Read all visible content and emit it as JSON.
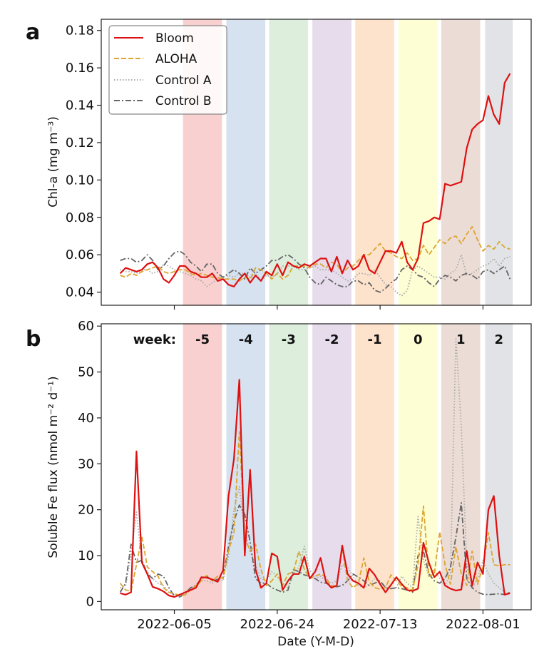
{
  "chart_data": [
    {
      "panel": "a",
      "type": "line",
      "title": "",
      "xlabel": "",
      "ylabel": "Chl-a (mg m⁻³)",
      "ylim": [
        0.033,
        0.186
      ],
      "yticks": [
        0.04,
        0.06,
        0.08,
        0.1,
        0.12,
        0.14,
        0.16,
        0.18
      ],
      "ytick_labels": [
        "0.04",
        "0.06",
        "0.08",
        "0.10",
        "0.12",
        "0.14",
        "0.16",
        "0.18"
      ],
      "x_start_date": "2022-05-26",
      "x_unit": "days since 2022-06-05",
      "x": [
        -10,
        -9,
        -8,
        -7,
        -6,
        -5,
        -4,
        -3,
        -2,
        -1,
        0,
        1,
        2,
        3,
        4,
        5,
        6,
        7,
        8,
        9,
        10,
        11,
        12,
        13,
        14,
        15,
        16,
        17,
        18,
        19,
        20,
        21,
        22,
        23,
        24,
        25,
        26,
        27,
        28,
        29,
        30,
        31,
        32,
        33,
        34,
        35,
        36,
        37,
        38,
        39,
        40,
        41,
        42,
        43,
        44,
        45,
        46,
        47,
        48,
        49,
        50,
        51,
        52,
        53,
        54,
        55,
        56,
        57,
        58,
        59,
        60,
        61,
        62
      ],
      "legend": "top-left",
      "series": [
        {
          "name": "Bloom",
          "color": "#dd1111",
          "style": "solid",
          "values": [
            0.05,
            0.053,
            0.052,
            0.051,
            0.052,
            0.055,
            0.056,
            0.053,
            0.047,
            0.045,
            0.049,
            0.054,
            0.054,
            0.051,
            0.05,
            0.048,
            0.048,
            0.05,
            0.046,
            0.047,
            0.044,
            0.043,
            0.047,
            0.05,
            0.045,
            0.049,
            0.046,
            0.051,
            0.049,
            0.055,
            0.049,
            0.056,
            0.054,
            0.053,
            0.055,
            0.054,
            0.056,
            0.058,
            0.058,
            0.051,
            0.059,
            0.05,
            0.057,
            0.052,
            0.054,
            0.06,
            0.052,
            0.05,
            0.056,
            0.062,
            0.062,
            0.061,
            0.067,
            0.056,
            0.052,
            0.058,
            0.077,
            0.078,
            0.08,
            0.079,
            0.098,
            0.097,
            0.098,
            0.099,
            0.117,
            0.127,
            0.13,
            0.132,
            0.145,
            0.135,
            0.13,
            0.152,
            0.157
          ]
        },
        {
          "name": "ALOHA",
          "color": "#dba531",
          "style": "dashed",
          "values": [
            0.049,
            0.048,
            0.05,
            0.049,
            0.051,
            0.052,
            0.053,
            0.054,
            0.051,
            0.05,
            0.051,
            0.052,
            0.052,
            0.05,
            0.049,
            0.05,
            0.049,
            0.048,
            0.048,
            0.047,
            0.047,
            0.047,
            0.046,
            0.048,
            0.047,
            0.053,
            0.052,
            0.05,
            0.047,
            0.05,
            0.047,
            0.049,
            0.054,
            0.054,
            0.054,
            0.053,
            0.055,
            0.055,
            0.053,
            0.056,
            0.055,
            0.05,
            0.053,
            0.054,
            0.057,
            0.06,
            0.06,
            0.063,
            0.066,
            0.062,
            0.061,
            0.059,
            0.058,
            0.061,
            0.057,
            0.058,
            0.065,
            0.06,
            0.064,
            0.068,
            0.066,
            0.069,
            0.07,
            0.066,
            0.071,
            0.075,
            0.068,
            0.062,
            0.065,
            0.063,
            0.067,
            0.064,
            0.063
          ]
        },
        {
          "name": "Control A",
          "color": "#aaaaaa",
          "style": "dotted",
          "values": [
            0.052,
            0.051,
            0.051,
            0.05,
            0.052,
            0.052,
            0.05,
            0.051,
            0.055,
            0.054,
            0.052,
            0.051,
            0.05,
            0.049,
            0.047,
            0.046,
            0.043,
            0.045,
            0.047,
            0.048,
            0.049,
            0.048,
            0.05,
            0.05,
            0.048,
            0.05,
            0.046,
            0.049,
            0.048,
            0.05,
            0.054,
            0.054,
            0.054,
            0.052,
            0.052,
            0.053,
            0.054,
            0.052,
            0.052,
            0.052,
            0.05,
            0.048,
            0.046,
            0.047,
            0.05,
            0.05,
            0.049,
            0.052,
            0.048,
            0.044,
            0.043,
            0.04,
            0.038,
            0.041,
            0.052,
            0.054,
            0.052,
            0.05,
            0.048,
            0.048,
            0.047,
            0.05,
            0.052,
            0.06,
            0.049,
            0.05,
            0.052,
            0.054,
            0.055,
            0.058,
            0.054,
            0.058,
            0.059
          ]
        },
        {
          "name": "Control B",
          "color": "#666666",
          "style": "dashdot",
          "values": [
            0.057,
            0.058,
            0.058,
            0.056,
            0.057,
            0.06,
            0.057,
            0.052,
            0.054,
            0.058,
            0.061,
            0.062,
            0.06,
            0.056,
            0.054,
            0.051,
            0.055,
            0.055,
            0.05,
            0.048,
            0.05,
            0.052,
            0.05,
            0.047,
            0.053,
            0.05,
            0.052,
            0.054,
            0.057,
            0.057,
            0.059,
            0.06,
            0.058,
            0.055,
            0.053,
            0.048,
            0.045,
            0.044,
            0.048,
            0.046,
            0.044,
            0.043,
            0.043,
            0.046,
            0.046,
            0.044,
            0.045,
            0.041,
            0.04,
            0.042,
            0.045,
            0.047,
            0.052,
            0.054,
            0.052,
            0.049,
            0.048,
            0.045,
            0.043,
            0.047,
            0.049,
            0.048,
            0.046,
            0.049,
            0.05,
            0.049,
            0.047,
            0.051,
            0.052,
            0.05,
            0.052,
            0.054,
            0.047
          ]
        }
      ]
    },
    {
      "panel": "b",
      "type": "line",
      "title": "",
      "xlabel": "Date (Y-M-D)",
      "ylabel": "Soluble Fe flux (nmol m⁻² d⁻¹)",
      "ylim": [
        -1.8,
        60.5
      ],
      "yticks": [
        0,
        10,
        20,
        30,
        40,
        50,
        60
      ],
      "ytick_labels": [
        "0",
        "10",
        "20",
        "30",
        "40",
        "50",
        "60"
      ],
      "xticks": [
        0,
        19,
        38,
        57
      ],
      "xtick_labels": [
        "2022-06-05",
        "2022-06-24",
        "2022-07-13",
        "2022-08-01"
      ],
      "x": [
        -10,
        -9,
        -8,
        -7,
        -6,
        -5,
        -4,
        -3,
        -2,
        -1,
        0,
        1,
        2,
        3,
        4,
        5,
        6,
        7,
        8,
        9,
        10,
        11,
        12,
        13,
        14,
        15,
        16,
        17,
        18,
        19,
        20,
        21,
        22,
        23,
        24,
        25,
        26,
        27,
        28,
        29,
        30,
        31,
        32,
        33,
        34,
        35,
        36,
        37,
        38,
        39,
        40,
        41,
        42,
        43,
        44,
        45,
        46,
        47,
        48,
        49,
        50,
        51,
        52,
        53,
        54,
        55,
        56,
        57,
        58,
        59,
        60,
        61,
        62
      ],
      "week_label_prefix": "week:",
      "series": [
        {
          "name": "Bloom",
          "color": "#dd1111",
          "style": "solid",
          "values": [
            1.8,
            1.5,
            2.0,
            32.7,
            8.5,
            6.0,
            3.2,
            2.8,
            2.2,
            1.3,
            1.0,
            1.5,
            2.0,
            2.5,
            3.0,
            5.3,
            5.2,
            4.8,
            4.3,
            6.8,
            23.0,
            31.0,
            48.3,
            10.0,
            28.7,
            7.0,
            3.0,
            4.0,
            10.5,
            9.8,
            2.5,
            4.5,
            6.0,
            6.0,
            9.8,
            5.0,
            6.5,
            9.5,
            4.3,
            3.0,
            3.5,
            12.2,
            6.0,
            4.5,
            4.0,
            3.0,
            7.2,
            5.8,
            3.8,
            2.0,
            3.6,
            5.3,
            3.8,
            2.5,
            2.3,
            2.8,
            12.8,
            8.5,
            5.3,
            6.5,
            3.5,
            2.8,
            2.4,
            2.6,
            11.0,
            3.5,
            8.5,
            6.0,
            20.0,
            23.0,
            10.0,
            1.5,
            1.8
          ]
        },
        {
          "name": "ALOHA",
          "color": "#dba531",
          "style": "dashed",
          "values": [
            4.0,
            2.5,
            2.3,
            8.0,
            14.3,
            7.5,
            6.5,
            5.5,
            3.0,
            2.0,
            1.8,
            1.2,
            1.5,
            2.5,
            3.5,
            4.5,
            5.7,
            4.5,
            5.5,
            5.0,
            11.0,
            15.0,
            37.0,
            14.0,
            11.0,
            12.5,
            7.0,
            3.5,
            4.5,
            6.0,
            3.5,
            6.0,
            6.5,
            11.0,
            7.0,
            5.0,
            5.5,
            6.0,
            5.3,
            3.2,
            4.0,
            11.5,
            4.5,
            3.0,
            4.0,
            9.5,
            4.3,
            3.0,
            2.7,
            3.0,
            5.8,
            4.5,
            3.3,
            3.0,
            2.5,
            8.0,
            20.8,
            5.5,
            6.0,
            15.2,
            8.0,
            3.8,
            12.0,
            6.0,
            3.5,
            11.0,
            3.8,
            7.5,
            15.0,
            8.0,
            7.8,
            8.0,
            8.0
          ]
        },
        {
          "name": "Control A",
          "color": "#aaaaaa",
          "style": "dotted",
          "values": [
            3.0,
            3.5,
            10.0,
            19.5,
            8.5,
            6.5,
            5.0,
            4.0,
            3.5,
            2.0,
            1.5,
            1.0,
            1.5,
            2.5,
            3.8,
            4.5,
            4.5,
            4.0,
            5.0,
            4.5,
            10.0,
            20.0,
            25.0,
            15.0,
            11.0,
            8.0,
            5.0,
            4.5,
            6.5,
            5.5,
            3.5,
            3.0,
            6.0,
            7.5,
            12.0,
            7.0,
            5.0,
            5.5,
            4.5,
            4.0,
            4.5,
            8.0,
            7.5,
            5.5,
            3.5,
            3.0,
            3.8,
            5.0,
            4.0,
            3.5,
            2.8,
            3.0,
            5.5,
            4.0,
            3.0,
            18.5,
            9.0,
            5.5,
            7.0,
            5.0,
            3.5,
            6.0,
            57.5,
            38.0,
            8.0,
            3.0,
            5.0,
            9.0,
            6.0,
            4.0,
            3.0,
            2.0,
            1.8
          ]
        },
        {
          "name": "Control B",
          "color": "#666666",
          "style": "dashdot",
          "values": [
            2.0,
            4.0,
            12.5,
            8.5,
            9.0,
            6.0,
            5.0,
            6.0,
            5.5,
            3.0,
            1.2,
            1.0,
            1.8,
            3.0,
            3.5,
            5.0,
            5.5,
            4.5,
            4.8,
            5.3,
            12.0,
            17.5,
            21.0,
            19.0,
            13.0,
            5.0,
            4.0,
            4.0,
            3.0,
            2.5,
            2.0,
            2.5,
            7.0,
            6.5,
            5.8,
            5.5,
            5.0,
            4.2,
            4.0,
            3.5,
            3.2,
            3.5,
            4.5,
            6.0,
            5.3,
            4.5,
            3.5,
            4.0,
            4.5,
            3.0,
            2.8,
            3.0,
            2.8,
            2.5,
            2.0,
            10.0,
            11.0,
            6.0,
            4.5,
            4.0,
            5.0,
            7.5,
            14.0,
            21.5,
            5.0,
            3.0,
            2.0,
            1.6,
            1.5,
            1.6,
            1.7,
            1.5,
            2.0
          ]
        }
      ]
    }
  ],
  "shared": {
    "legend_entries": [
      "Bloom",
      "ALOHA",
      "Control A",
      "Control B"
    ],
    "week_bands": [
      {
        "label": "-5",
        "start": 1.7,
        "end": 8.7,
        "color": "#f8d0d0"
      },
      {
        "label": "-4",
        "start": 9.7,
        "end": 16.7,
        "color": "#d6e2ef"
      },
      {
        "label": "-3",
        "start": 17.6,
        "end": 24.6,
        "color": "#ddefdc"
      },
      {
        "label": "-2",
        "start": 25.6,
        "end": 32.6,
        "color": "#e6dcec"
      },
      {
        "label": "-1",
        "start": 33.5,
        "end": 40.5,
        "color": "#fde2cc"
      },
      {
        "label": "0",
        "start": 41.5,
        "end": 48.5,
        "color": "#fdfed4"
      },
      {
        "label": "1",
        "start": 49.4,
        "end": 56.4,
        "color": "#ecdcd6"
      },
      {
        "label": "2",
        "start": 57.5,
        "end": 62.4,
        "color": "#e2e3e6"
      }
    ],
    "xlim": [
      -13.5,
      65.9
    ]
  },
  "panel_labels": [
    "a",
    "b"
  ]
}
